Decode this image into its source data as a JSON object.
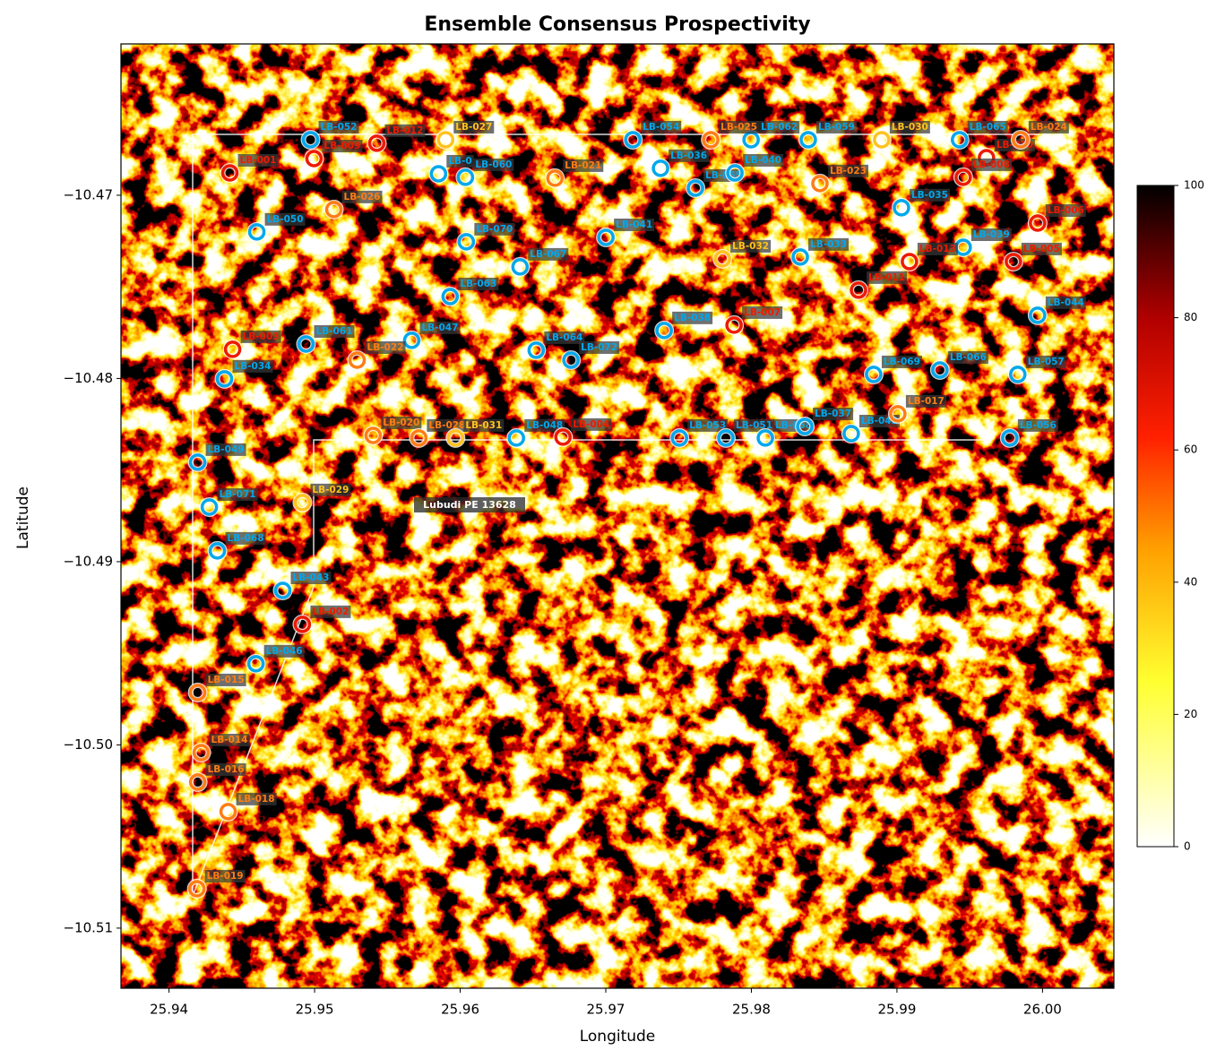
{
  "chart_data": {
    "type": "scatter",
    "title": "Ensemble Consensus Prospectivity",
    "x_label": "Longitude",
    "y_label": "Latitude",
    "xlim": [
      25.9367,
      26.0049
    ],
    "ylim": [
      -10.51328,
      -10.46174
    ],
    "xticks": [
      25.94,
      25.95,
      25.96,
      25.97,
      25.98,
      25.99,
      {
        "value": 26.0,
        "label": "26.00"
      }
    ],
    "yticks": [
      {
        "value": -10.47,
        "label": "−10.47"
      },
      {
        "value": -10.48,
        "label": "−10.48"
      },
      {
        "value": -10.49,
        "label": "−10.49"
      },
      {
        "value": -10.5,
        "label": "−10.50"
      },
      {
        "value": -10.51,
        "label": "−10.51"
      }
    ],
    "colorbar": {
      "lim": [
        0,
        100
      ],
      "ticks": [
        0,
        20,
        40,
        60,
        80,
        100
      ]
    },
    "annotations": [
      {
        "text": "Lubudi PE 13628"
      }
    ],
    "series": [
      {
        "color": "#00a8ec",
        "labels": [
          "LB-052",
          "LB-0",
          "LB-060",
          "LB-054",
          "LB-062",
          "LB-059",
          "LB-065",
          "LB-036",
          "LB-055",
          "LB-040",
          "LB-050",
          "LB-070",
          "LB-041",
          "LB-033",
          "LB-035",
          "LB-039",
          "LB-067",
          "LB-063",
          "LB-044",
          "LB-038",
          "LB-061",
          "LB-047",
          "LB-064",
          "LB-072",
          "LB-034",
          "LB-069",
          "LB-066",
          "LB-057",
          "LB-048",
          "LB-053",
          "LB-051",
          "LB-058",
          "LB-037",
          "LB-042",
          "LB-056",
          "LB-049",
          "LB-071",
          "LB-068",
          "LB-043",
          "LB-046"
        ],
        "x": [
          25.94972,
          25.95851,
          25.96036,
          25.97186,
          25.97998,
          25.98391,
          25.9943,
          25.97376,
          25.97616,
          25.97887,
          25.94603,
          25.96042,
          25.97001,
          25.98336,
          25.99031,
          25.99455,
          25.96411,
          25.95931,
          25.99966,
          25.97401,
          25.94941,
          25.95667,
          25.96522,
          25.96761,
          25.94381,
          25.9884,
          25.99295,
          25.9983,
          25.96386,
          25.97506,
          25.97825,
          25.98096,
          25.98367,
          25.98686,
          25.99775,
          25.94197,
          25.94277,
          25.94332,
          25.94781,
          25.94597
        ],
        "y": [
          -10.46697,
          -10.46883,
          -10.46902,
          -10.46697,
          -10.46697,
          -10.46697,
          -10.46697,
          -10.46853,
          -10.46961,
          -10.46878,
          -10.472,
          -10.47254,
          -10.4723,
          -10.47337,
          -10.47068,
          -10.47284,
          -10.47391,
          -10.47553,
          -10.47655,
          -10.47738,
          -10.47812,
          -10.47792,
          -10.47846,
          -10.479,
          -10.48002,
          -10.47978,
          -10.47954,
          -10.47978,
          -10.48325,
          -10.48325,
          -10.48325,
          -10.48325,
          -10.48262,
          -10.48301,
          -10.48325,
          -10.48457,
          -10.48702,
          -10.48941,
          -10.49157,
          -10.49557
        ]
      },
      {
        "color": "#ee1a00",
        "labels": [
          "LB-001",
          "LB-009",
          "LB-012",
          "LB-010",
          "LB-008",
          "LB-006",
          "LB-005",
          "LB-013",
          "LB-011",
          "LB-007",
          "LB-003",
          "LB-004",
          "LB-002"
        ],
        "x": [
          25.94418,
          25.94996,
          25.95427,
          25.99615,
          25.99455,
          25.99966,
          25.998,
          25.99086,
          25.98736,
          25.97881,
          25.94437,
          25.96706,
          25.94916
        ],
        "y": [
          -10.46878,
          -10.468,
          -10.46716,
          -10.46795,
          -10.46902,
          -10.47152,
          -10.47362,
          -10.47362,
          -10.47518,
          -10.47709,
          -10.47841,
          -10.4832,
          -10.49342
        ]
      },
      {
        "color": "#ff7d14",
        "labels": [
          "LB-021",
          "LB-025",
          "LB-024",
          "LB-023",
          "LB-026",
          "LB-022",
          "LB-017",
          "LB-020",
          "LB-028",
          "LB-015",
          "LB-014",
          "LB-016",
          "LB-018",
          "LB-019"
        ],
        "x": [
          25.96651,
          25.97721,
          25.99849,
          25.98471,
          25.95132,
          25.95292,
          25.99006,
          25.95402,
          25.95716,
          25.94197,
          25.94221,
          25.94197,
          25.94406,
          25.94191
        ],
        "y": [
          -10.46907,
          -10.46697,
          -10.46697,
          -10.46936,
          -10.47078,
          -10.479,
          -10.48193,
          -10.48311,
          -10.48325,
          -10.49714,
          -10.50042,
          -10.50203,
          -10.50364,
          -10.50785
        ]
      },
      {
        "color": "#ffc21e",
        "labels": [
          "LB-027",
          "LB-030",
          "LB-032",
          "LB-031",
          "LB-029"
        ],
        "x": [
          25.959,
          25.98895,
          25.97801,
          25.95968,
          25.94916
        ],
        "y": [
          -10.46697,
          -10.46697,
          -10.47347,
          -10.48325,
          -10.48677
        ]
      }
    ]
  }
}
